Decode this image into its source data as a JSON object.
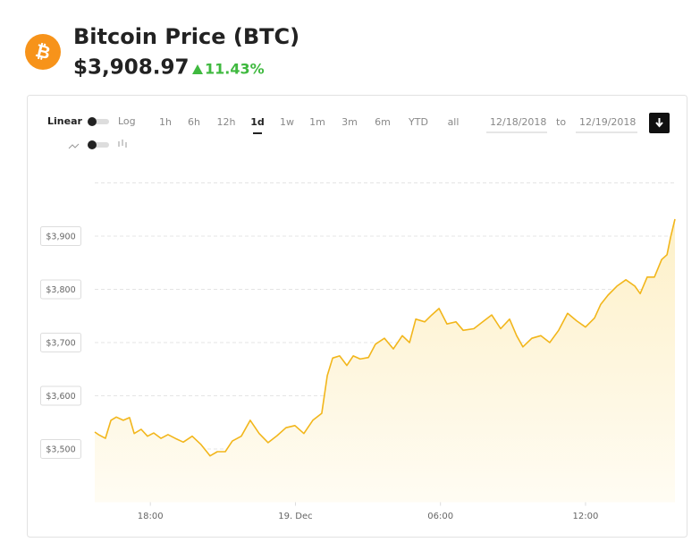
{
  "header": {
    "title": "Bitcoin Price (BTC)",
    "price": "$3,908.97",
    "change": "11.43%"
  },
  "toolbar": {
    "scale_left": "Linear",
    "scale_right": "Log",
    "ranges": [
      "1h",
      "6h",
      "12h",
      "1d",
      "1w",
      "1m",
      "3m",
      "6m",
      "YTD",
      "all"
    ],
    "selected_range": "1d",
    "from": "12/18/2018",
    "to_label": "to",
    "to": "12/19/2018"
  },
  "chart_data": {
    "type": "area",
    "watermark": "coindesk",
    "color": "#f2b61b",
    "grid": true,
    "x": [
      15.7,
      15.85,
      16.14,
      16.37,
      16.59,
      16.88,
      17.14,
      17.33,
      17.62,
      17.88,
      18.14,
      18.44,
      18.73,
      19.03,
      19.36,
      19.73,
      20.1,
      20.47,
      20.77,
      21.1,
      21.39,
      21.76,
      22.13,
      22.5,
      22.87,
      23.24,
      23.61,
      23.98,
      24.35,
      24.72,
      25.09,
      25.32,
      25.54,
      25.83,
      26.13,
      26.39,
      26.68,
      27.02,
      27.31,
      27.68,
      28.05,
      28.42,
      28.72,
      28.98,
      29.35,
      29.64,
      29.94,
      30.27,
      30.64,
      30.94,
      31.38,
      31.75,
      32.12,
      32.49,
      32.86,
      33.15,
      33.41,
      33.78,
      34.15,
      34.52,
      34.89,
      35.26,
      35.63,
      36.0,
      36.37,
      36.63,
      36.93,
      37.3,
      37.67,
      38.04,
      38.26,
      38.55,
      38.85,
      39.15,
      39.37,
      39.52,
      39.7
    ],
    "values": [
      3532,
      3527,
      3520,
      3554,
      3560,
      3554,
      3559,
      3529,
      3537,
      3524,
      3530,
      3520,
      3527,
      3520,
      3513,
      3524,
      3508,
      3487,
      3495,
      3495,
      3515,
      3524,
      3554,
      3529,
      3512,
      3525,
      3540,
      3544,
      3529,
      3554,
      3567,
      3638,
      3671,
      3675,
      3657,
      3675,
      3669,
      3672,
      3697,
      3708,
      3688,
      3713,
      3700,
      3744,
      3739,
      3752,
      3764,
      3735,
      3739,
      3723,
      3726,
      3739,
      3752,
      3726,
      3744,
      3713,
      3692,
      3708,
      3713,
      3700,
      3723,
      3755,
      3741,
      3729,
      3746,
      3772,
      3789,
      3806,
      3818,
      3806,
      3792,
      3823,
      3823,
      3856,
      3865,
      3898,
      3932
    ],
    "xlim": [
      15.7,
      39.7
    ],
    "xticks": [
      {
        "value": 18,
        "label": "18:00"
      },
      {
        "value": 24,
        "label": "19. Dec"
      },
      {
        "value": 30,
        "label": "06:00"
      },
      {
        "value": 36,
        "label": "12:00"
      }
    ],
    "ylim": [
      3400,
      4000
    ],
    "yticks": [
      {
        "value": 3500,
        "label": "$3,500"
      },
      {
        "value": 3600,
        "label": "$3,600"
      },
      {
        "value": 3700,
        "label": "$3,700"
      },
      {
        "value": 3800,
        "label": "$3,800"
      },
      {
        "value": 3900,
        "label": "$3,900"
      }
    ]
  }
}
